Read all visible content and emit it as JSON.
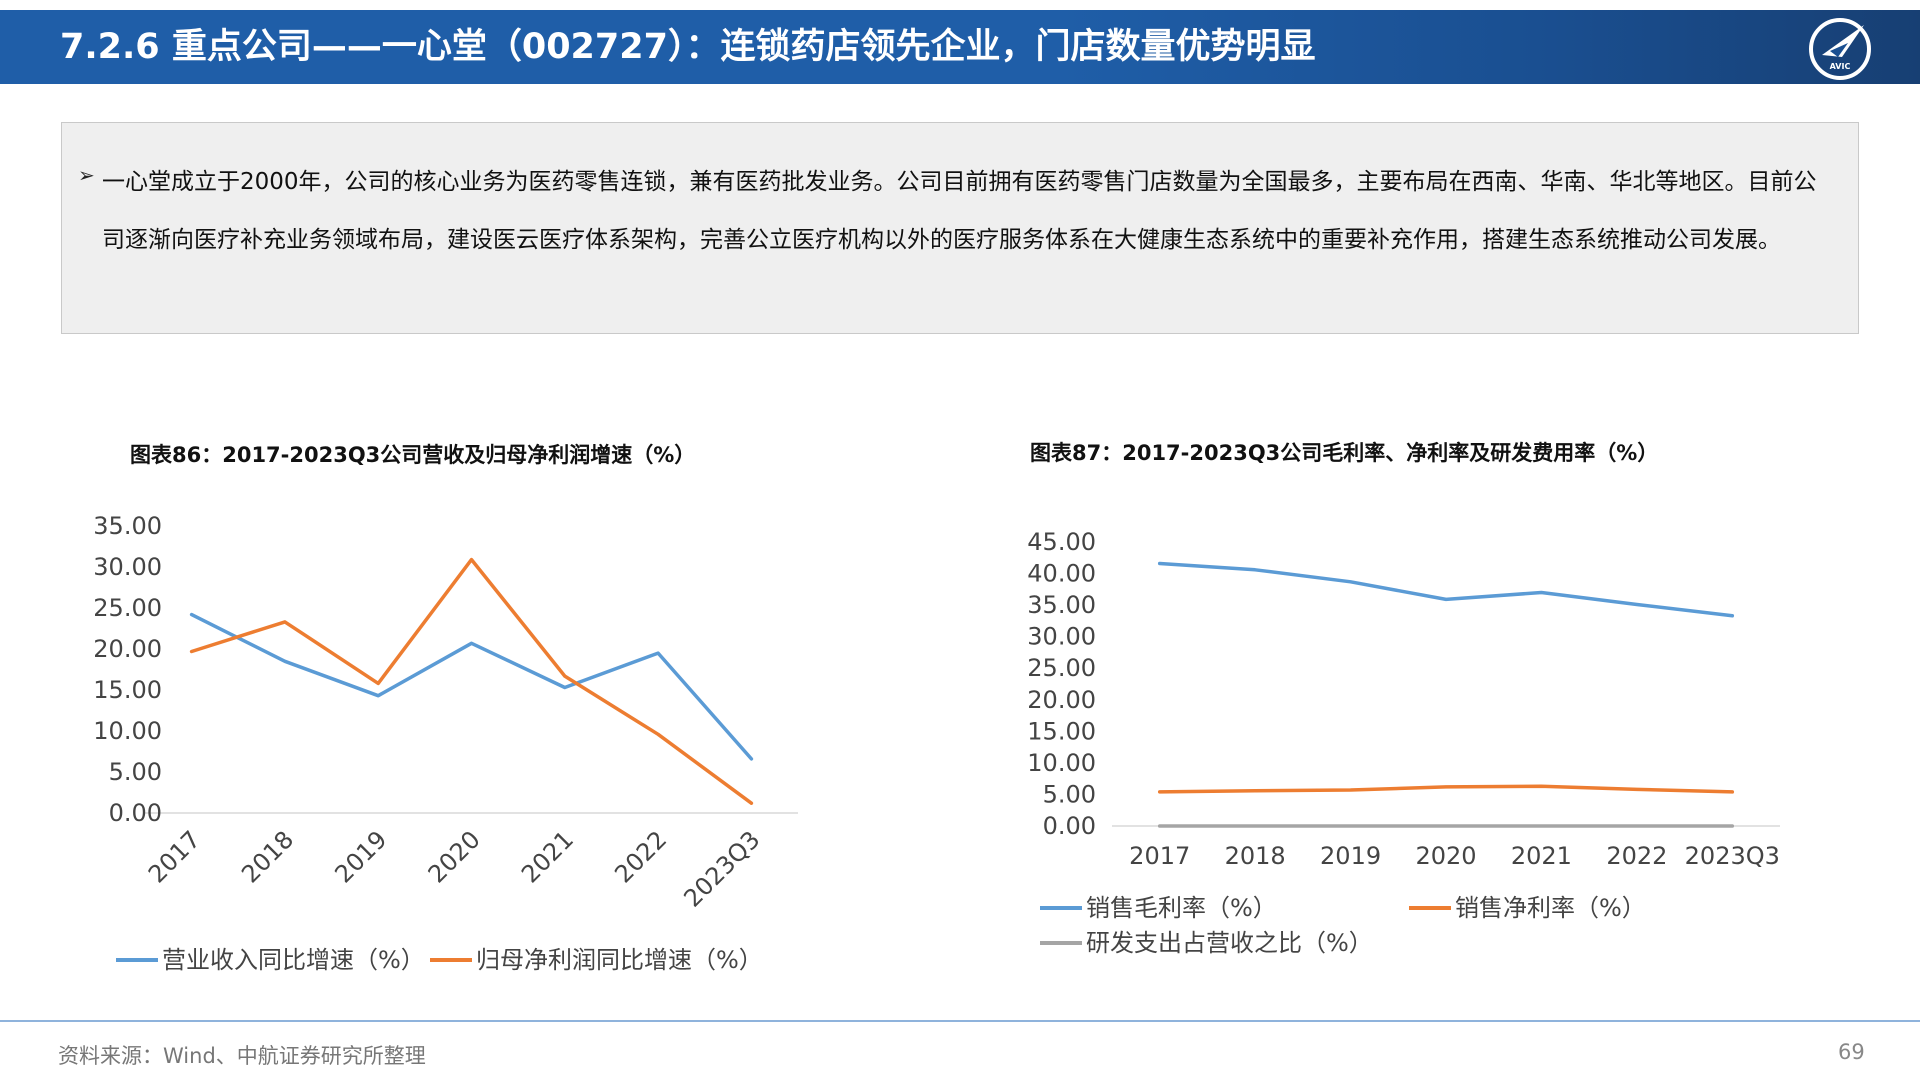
{
  "header": {
    "title": "7.2.6 重点公司——一心堂（002727）：连锁药店领先企业，门店数量优势明显"
  },
  "logo": {
    "text": "AVIC"
  },
  "summary": {
    "bullet": "➢",
    "text": "一心堂成立于2000年，公司的核心业务为医药零售连锁，兼有医药批发业务。公司目前拥有医药零售门店数量为全国最多，主要布局在西南、华南、华北等地区。目前公司逐渐向医疗补充业务领域布局，建设医云医疗体系架构，完善公立医疗机构以外的医疗服务体系在大健康生态系统中的重要补充作用，搭建生态系统推动公司发展。"
  },
  "chart_data": [
    {
      "type": "line",
      "title": "图表86：2017-2023Q3公司营收及归母净利润增速（%）",
      "categories": [
        "2017",
        "2018",
        "2019",
        "2020",
        "2021",
        "2022",
        "2023Q3"
      ],
      "yticks": [
        "0.00",
        "5.00",
        "10.00",
        "15.00",
        "20.00",
        "25.00",
        "30.00",
        "35.00"
      ],
      "ylim": [
        0,
        35
      ],
      "grid": false,
      "legend": "bottom",
      "series": [
        {
          "name": "营业收入同比增速（%）",
          "color": "#5b9bd5",
          "values": [
            24.2,
            18.5,
            14.3,
            20.7,
            15.3,
            19.5,
            6.6
          ]
        },
        {
          "name": "归母净利润同比增速（%）",
          "color": "#ed7d31",
          "values": [
            19.7,
            23.3,
            15.8,
            30.9,
            16.7,
            9.6,
            1.2
          ]
        }
      ]
    },
    {
      "type": "line",
      "title": "图表87：2017-2023Q3公司毛利率、净利率及研发费用率（%）",
      "categories": [
        "2017",
        "2018",
        "2019",
        "2020",
        "2021",
        "2022",
        "2023Q3"
      ],
      "yticks": [
        "0.00",
        "5.00",
        "10.00",
        "15.00",
        "20.00",
        "25.00",
        "30.00",
        "35.00",
        "40.00",
        "45.00"
      ],
      "ylim": [
        0,
        45
      ],
      "grid": false,
      "legend": "bottom",
      "series": [
        {
          "name": "销售毛利率（%）",
          "color": "#5b9bd5",
          "values": [
            41.6,
            40.6,
            38.7,
            35.9,
            37.0,
            35.1,
            33.3
          ]
        },
        {
          "name": "销售净利率（%）",
          "color": "#ed7d31",
          "values": [
            5.4,
            5.6,
            5.7,
            6.2,
            6.3,
            5.8,
            5.4
          ]
        },
        {
          "name": "研发支出占营收之比（%）",
          "color": "#a5a5a5",
          "values": [
            0.0,
            0.0,
            0.0,
            0.0,
            0.0,
            0.0,
            0.0
          ]
        }
      ]
    }
  ],
  "footer": {
    "source": "资料来源：Wind、中航证券研究所整理",
    "page": "69"
  }
}
